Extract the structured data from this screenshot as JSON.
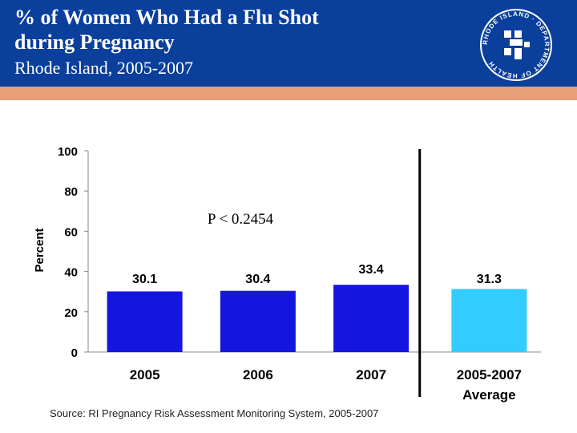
{
  "header": {
    "title": "% of Women Who Had a Flu Shot during Pregnancy",
    "subtitle": "Rhode Island, 2005-2007",
    "logo": {
      "icon": "ri-department-of-health-logo",
      "text": "RHODE ISLAND · DEPARTMENT OF HEALTH"
    }
  },
  "colors": {
    "header": "#0a3f9c",
    "stripe": "#e8a07a",
    "bar": "#1515e0",
    "bar_average": "#33ccff"
  },
  "chart_data": {
    "type": "bar",
    "title": "% of Women Who Had a Flu Shot during Pregnancy",
    "ylabel": "Percent",
    "xlabel": "",
    "ylim": [
      0,
      100
    ],
    "yticks": [
      0,
      20,
      40,
      60,
      80,
      100
    ],
    "categories": [
      "2005",
      "2006",
      "2007",
      "2005-2007 Average"
    ],
    "category_lines": [
      [
        "2005"
      ],
      [
        "2006"
      ],
      [
        "2007"
      ],
      [
        "2005-2007",
        "Average"
      ]
    ],
    "values": [
      30.1,
      30.4,
      33.4,
      31.3
    ],
    "value_labels": [
      "30.1",
      "30.4",
      "33.4",
      "31.3"
    ],
    "annotation": "P < 0.2454"
  },
  "source": "Source: RI Pregnancy Risk Assessment Monitoring System, 2005-2007"
}
